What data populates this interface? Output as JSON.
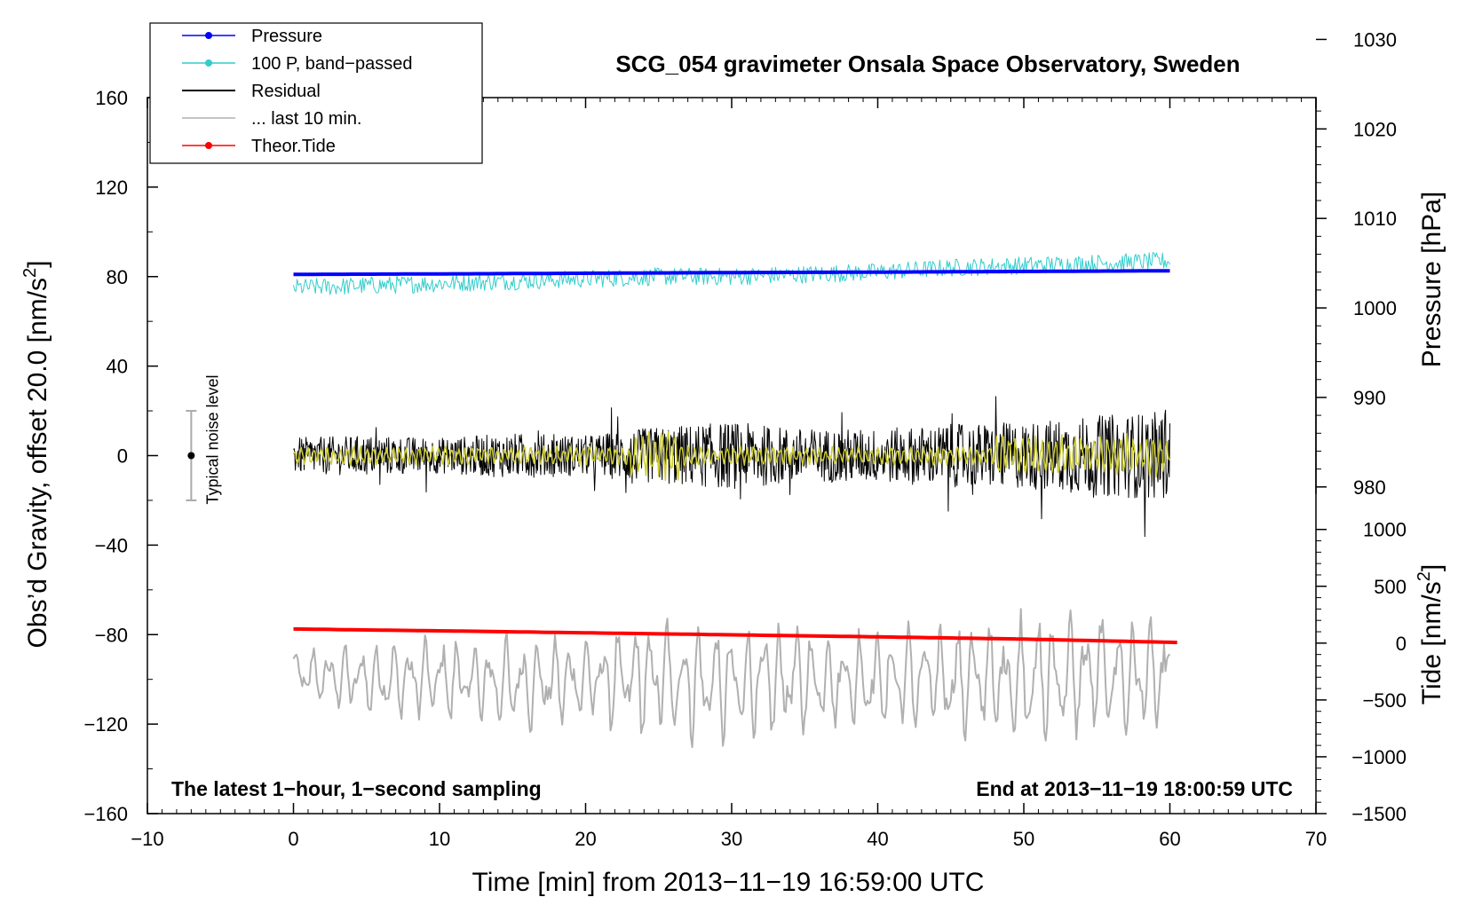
{
  "chart_data": {
    "type": "line",
    "title": "SCG_054 gravimeter Onsala Space Observatory, Sweden",
    "xlabel": "Time [min] from 2013−11−19 16:59:00 UTC",
    "ylabel_left_prefix": "Obs’d Gravity, offset 20.0 [nm/s",
    "ylabel_left_suffix": "]",
    "ylabel_right_pressure": "Pressure [hPa]",
    "ylabel_right_tide_prefix": "Tide [nm/s",
    "ylabel_right_tide_suffix": "]",
    "superscript": "2",
    "xlim": [
      -10,
      70
    ],
    "ylim_left": [
      -160,
      160
    ],
    "x_ticks": [
      -10,
      0,
      10,
      20,
      30,
      40,
      50,
      60,
      70
    ],
    "x_tick_labels": [
      "−10",
      "0",
      "10",
      "20",
      "30",
      "40",
      "50",
      "60",
      "70"
    ],
    "y_ticks_left": [
      -160,
      -120,
      -80,
      -40,
      0,
      40,
      80,
      120,
      160
    ],
    "y_tick_labels_left": [
      "−160",
      "−120",
      "−80",
      "−40",
      "0",
      "40",
      "80",
      "120",
      "160"
    ],
    "pressure_axis": {
      "range_in_gravity_units": [
        -160,
        160
      ],
      "hPa_per_gravity_unit": 0.25,
      "hPa_at_gravity_zero": 983.5,
      "ticks": [
        980,
        990,
        1000,
        1010,
        1020,
        1030
      ],
      "tick_labels": [
        "980",
        "990",
        "1000",
        "1010",
        "1020",
        "1030"
      ]
    },
    "tide_axis": {
      "ticks": [
        -1500,
        -1000,
        -500,
        0,
        500,
        1000
      ],
      "tick_labels": [
        "−1500",
        "−1000",
        "−500",
        "0",
        "500",
        "1000"
      ],
      "tide_range": [
        -1500,
        1000
      ],
      "gravity_range": [
        -160,
        -33
      ]
    },
    "series": [
      {
        "name": "Pressure",
        "color": "#0000ff",
        "x": [
          0,
          10,
          20,
          30,
          40,
          50,
          60
        ],
        "y": [
          81.0,
          81.2,
          81.5,
          81.8,
          82.0,
          82.3,
          82.6
        ]
      },
      {
        "name": "100 P, band−passed",
        "color": "#33cccc",
        "x": [
          0,
          5,
          10,
          15,
          20,
          25,
          30,
          35,
          40,
          45,
          50,
          55,
          60
        ],
        "y": [
          75,
          76,
          77,
          78,
          79,
          80,
          80,
          81,
          82,
          84,
          85,
          86,
          87
        ],
        "noise_amplitude": 4
      },
      {
        "name": "Residual",
        "color": "#000000",
        "x": [
          0,
          5,
          10,
          15,
          20,
          25,
          30,
          35,
          40,
          45,
          50,
          55,
          60
        ],
        "y": [
          0,
          0,
          0,
          0,
          0,
          0,
          0,
          0,
          0,
          0,
          0,
          0,
          0
        ],
        "noise_amplitude": [
          8,
          9,
          8,
          10,
          9,
          13,
          15,
          12,
          12,
          14,
          15,
          18,
          20
        ]
      },
      {
        "name": "Residual (smoothed)",
        "color": "#cccc33",
        "x": [
          0,
          10,
          20,
          30,
          40,
          50,
          60
        ],
        "y": [
          0,
          0,
          0,
          0,
          0,
          0,
          0
        ],
        "noise_amplitude": 3
      },
      {
        "name": "... last 10 min.",
        "color": "#b0b0b0",
        "x": [
          0,
          5,
          10,
          15,
          20,
          25,
          30,
          35,
          40,
          45,
          50,
          55,
          60
        ],
        "y": [
          -98,
          -100,
          -100,
          -102,
          -100,
          -100,
          -102,
          -100,
          -100,
          -100,
          -100,
          -98,
          -100
        ],
        "osc_amplitude": [
          12,
          15,
          18,
          20,
          18,
          25,
          25,
          22,
          22,
          24,
          28,
          26,
          24
        ]
      },
      {
        "name": "Theor.Tide",
        "color": "#ff0000",
        "x": [
          0,
          10,
          20,
          30,
          40,
          50,
          60.5
        ],
        "y": [
          -77.5,
          -78.3,
          -79.2,
          -80.1,
          -81.0,
          -82.0,
          -83.5
        ]
      }
    ],
    "legend": [
      {
        "label": "Pressure",
        "color": "#0000ff",
        "marker": true
      },
      {
        "label": "100 P, band−passed",
        "color": "#33cccc",
        "marker": true
      },
      {
        "label": "Residual",
        "color": "#000000",
        "marker": false
      },
      {
        "label": "... last 10 min.",
        "color": "#b0b0b0",
        "marker": false
      },
      {
        "label": "Theor.Tide",
        "color": "#ff0000",
        "marker": true
      }
    ],
    "legend_position": "top-left",
    "noise_bar": {
      "label": "Typical noise level",
      "x": -7,
      "center": 0,
      "half_range": 20
    },
    "annotation_left": "The latest 1−hour, 1−second sampling",
    "annotation_right": "End at 2013−11−19 18:00:59 UTC"
  }
}
